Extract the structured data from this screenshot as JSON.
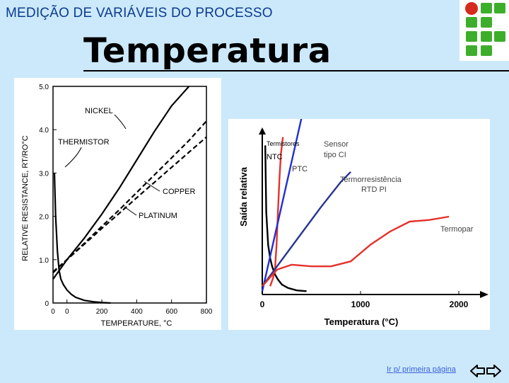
{
  "header": {
    "text": "MEDIÇÃO DE VARIÁVEIS DO PROCESSO"
  },
  "title": "Temperatura",
  "footer": {
    "link_text": "Ir p/ primeira página"
  },
  "colors": {
    "background": "#cce9fb",
    "header": "#0b3a8f",
    "logo_green": "#3dae2b",
    "logo_red": "#d52b1e"
  },
  "icons": {
    "logo": "institution-logo-icon",
    "nav_left": "arrow-left-icon",
    "nav_right": "arrow-right-icon"
  },
  "chart_data": [
    {
      "type": "line",
      "title": "",
      "xlabel": "TEMPERATURE, °C",
      "ylabel": "RELATIVE RESISTANCE, RT/RO°C",
      "xlim": [
        -80,
        800
      ],
      "ylim": [
        0,
        5.0
      ],
      "xticks": [
        "0",
        "0",
        "200",
        "400",
        "600",
        "800"
      ],
      "yticks": [
        "0",
        "1.0",
        "2.0",
        "3.0",
        "4.0",
        "5.0"
      ],
      "grid": false,
      "series": [
        {
          "name": "NICKEL",
          "style": "solid",
          "x": [
            -80,
            0,
            100,
            200,
            300,
            400,
            500,
            600,
            700
          ],
          "y": [
            0.55,
            1.0,
            1.5,
            2.05,
            2.65,
            3.3,
            3.95,
            4.55,
            5.0
          ]
        },
        {
          "name": "COPPER",
          "style": "dashed",
          "x": [
            -80,
            0,
            100,
            200,
            300,
            400,
            500,
            600,
            700,
            800
          ],
          "y": [
            0.7,
            1.0,
            1.38,
            1.77,
            2.15,
            2.55,
            2.95,
            3.35,
            3.75,
            4.2
          ]
        },
        {
          "name": "PLATINUM",
          "style": "dashed",
          "x": [
            -80,
            0,
            100,
            200,
            300,
            400,
            500,
            600,
            700,
            800
          ],
          "y": [
            0.72,
            1.0,
            1.36,
            1.72,
            2.07,
            2.43,
            2.78,
            3.13,
            3.48,
            3.83
          ]
        },
        {
          "name": "THERMISTOR",
          "style": "solid",
          "x": [
            -72,
            -65,
            -55,
            -45,
            -35,
            -20,
            0,
            25,
            50,
            100,
            150,
            200,
            250
          ],
          "y": [
            3.0,
            2.0,
            1.2,
            0.75,
            0.55,
            0.42,
            0.3,
            0.2,
            0.13,
            0.06,
            0.03,
            0.01,
            0.0
          ]
        }
      ]
    },
    {
      "type": "line",
      "title": "",
      "xlabel": "Temperatura (°C)",
      "ylabel": "Saída relativa",
      "xlim": [
        0,
        2000
      ],
      "xticks": [
        "0",
        "1000",
        "2000"
      ],
      "grid": false,
      "annotations": [
        "Termistores",
        "NTC",
        "PTC",
        "Sensor",
        "tipo CI",
        "Termorresistência",
        "RTD PI",
        "Termopar"
      ],
      "series": [
        {
          "name": "NTC",
          "color": "#000000",
          "x": [
            30,
            40,
            60,
            80,
            100,
            130,
            160,
            200,
            260,
            350,
            450
          ],
          "y": [
            0.9,
            0.5,
            0.3,
            0.22,
            0.17,
            0.12,
            0.09,
            0.06,
            0.04,
            0.025,
            0.02
          ]
        },
        {
          "name": "PTC",
          "color": "#e4312b",
          "x": [
            80,
            110,
            130,
            145,
            160,
            175,
            190,
            210
          ],
          "y": [
            0.05,
            0.1,
            0.16,
            0.3,
            0.5,
            0.7,
            0.85,
            0.95
          ]
        },
        {
          "name": "Sensor tipo CI",
          "color": "#1f2fd6",
          "x": [
            0,
            420
          ],
          "y": [
            0.02,
            1.12
          ]
        },
        {
          "name": "RTD PI",
          "color": "#283593",
          "x": [
            0,
            200,
            400,
            600,
            800,
            900
          ],
          "y": [
            0.05,
            0.21,
            0.37,
            0.53,
            0.68,
            0.74
          ]
        },
        {
          "name": "Termopar",
          "color": "#e4312b",
          "x": [
            0,
            150,
            300,
            500,
            700,
            900,
            1100,
            1300,
            1500,
            1700,
            1900
          ],
          "y": [
            0.05,
            0.15,
            0.18,
            0.17,
            0.17,
            0.2,
            0.3,
            0.38,
            0.44,
            0.45,
            0.47
          ]
        }
      ]
    }
  ]
}
